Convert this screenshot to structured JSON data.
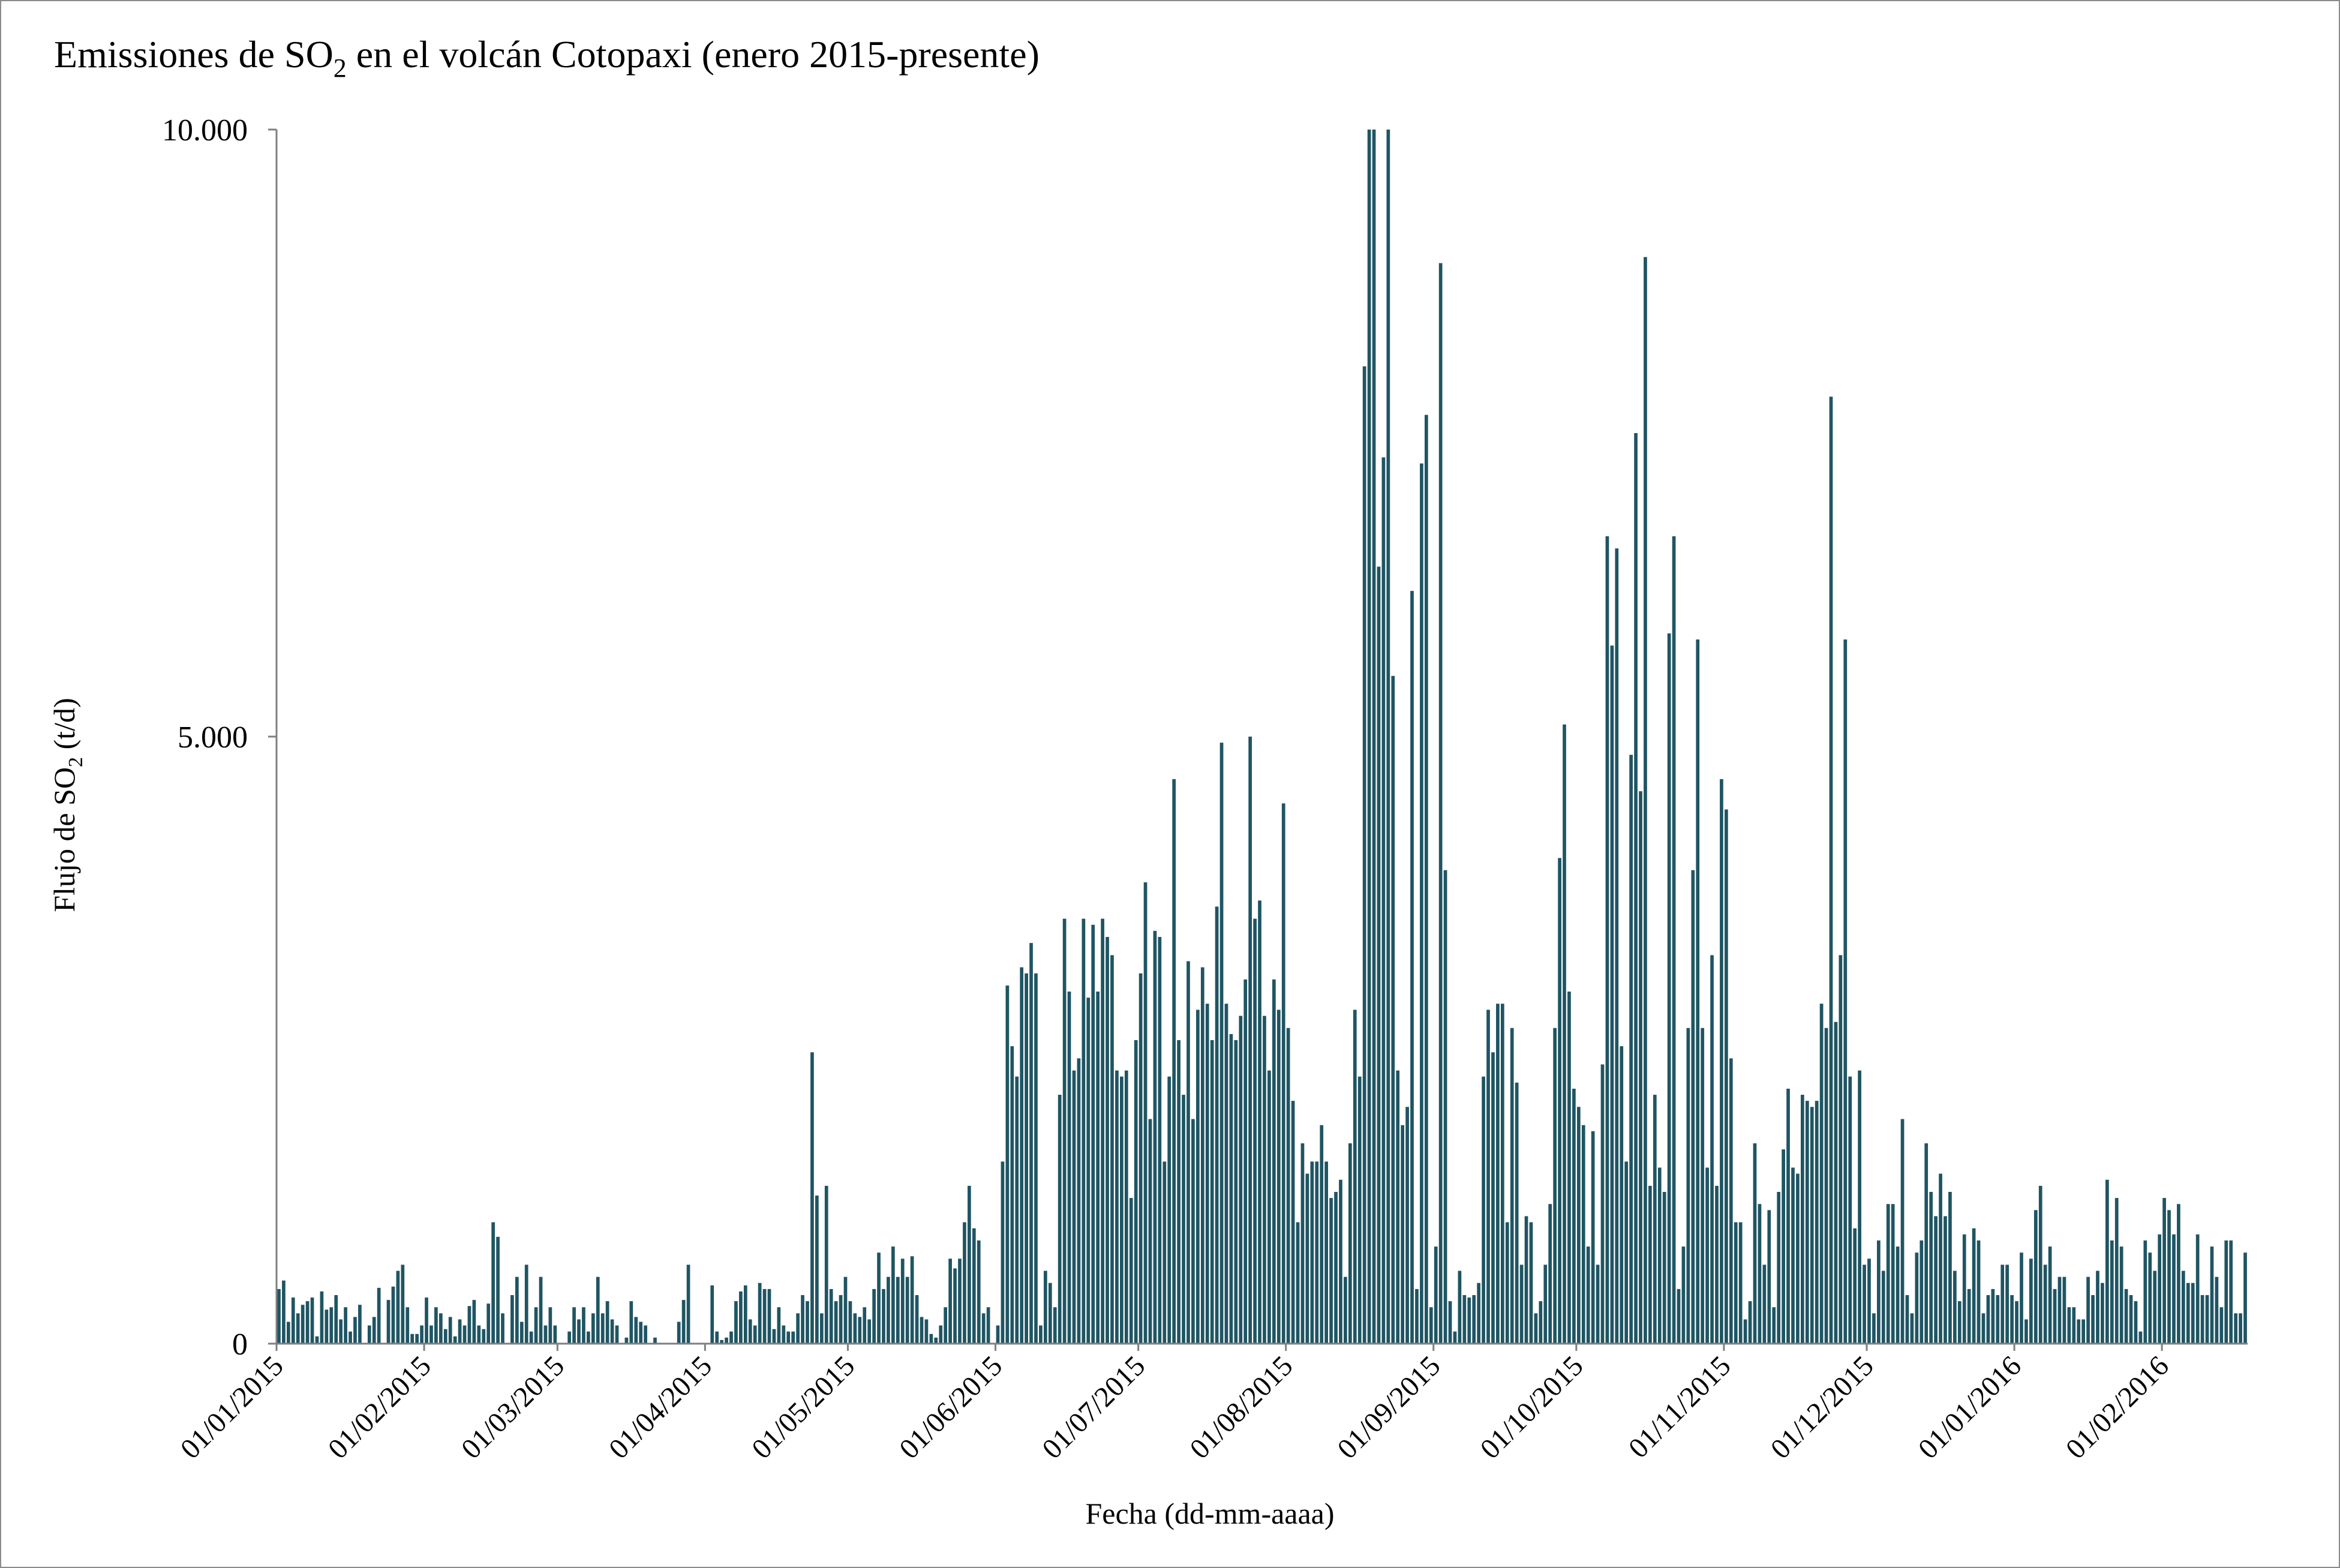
{
  "chart_data": {
    "type": "bar",
    "title": "Emissiones de SO",
    "title_sub": "2",
    "title_rest": " en el volcán Cotopaxi (enero 2015-presente)",
    "ylabel": "Flujo de SO",
    "ylabel_sub": "2",
    "ylabel_rest": " (t/d)",
    "xlabel": "Fecha (dd-mm-aaaa)",
    "ylim": [
      0,
      10000
    ],
    "y_ticks": [
      {
        "value": 0,
        "label": "0"
      },
      {
        "value": 5000,
        "label": "5.000"
      },
      {
        "value": 10000,
        "label": "10.000"
      }
    ],
    "x_ticks": [
      "01/01/2015",
      "01/02/2015",
      "01/03/2015",
      "01/04/2015",
      "01/05/2015",
      "01/06/2015",
      "01/07/2015",
      "01/08/2015",
      "01/09/2015",
      "01/10/2015",
      "01/11/2015",
      "01/12/2015",
      "01/01/2016",
      "01/02/2016"
    ],
    "x_start": "01/01/2015",
    "x_end": "20/02/2016",
    "grid": false,
    "legend": "none",
    "bar_color": "#1f5563",
    "daily_values": [
      450,
      520,
      180,
      380,
      250,
      320,
      350,
      380,
      60,
      430,
      280,
      300,
      400,
      200,
      300,
      100,
      220,
      320,
      0,
      150,
      220,
      460,
      0,
      360,
      470,
      600,
      650,
      300,
      80,
      80,
      150,
      380,
      150,
      300,
      250,
      120,
      220,
      60,
      200,
      150,
      310,
      360,
      150,
      120,
      330,
      1000,
      880,
      250,
      0,
      400,
      550,
      180,
      650,
      100,
      300,
      550,
      150,
      300,
      150,
      0,
      0,
      100,
      300,
      200,
      300,
      100,
      250,
      550,
      250,
      350,
      200,
      150,
      0,
      50,
      350,
      220,
      180,
      150,
      0,
      50,
      0,
      0,
      0,
      0,
      180,
      360,
      650,
      0,
      0,
      0,
      0,
      480,
      100,
      30,
      50,
      100,
      350,
      430,
      480,
      200,
      150,
      500,
      450,
      450,
      120,
      300,
      150,
      100,
      100,
      250,
      400,
      350,
      2400,
      1220,
      250,
      1300,
      450,
      350,
      400,
      550,
      350,
      250,
      220,
      300,
      200,
      450,
      750,
      450,
      550,
      800,
      550,
      700,
      550,
      720,
      400,
      220,
      200,
      80,
      50,
      150,
      300,
      700,
      620,
      700,
      1000,
      1300,
      950,
      850,
      250,
      300,
      0,
      150,
      1500,
      2950,
      2450,
      2200,
      3100,
      3050,
      3300,
      3050,
      150,
      600,
      500,
      300,
      2050,
      3500,
      2900,
      2250,
      2350,
      3500,
      2850,
      3450,
      2900,
      3500,
      3350,
      3200,
      2250,
      2200,
      2250,
      1200,
      2500,
      3050,
      3800,
      1850,
      3400,
      3350,
      1500,
      2200,
      4650,
      2500,
      2050,
      3150,
      1850,
      2750,
      3100,
      2800,
      2500,
      3600,
      4950,
      2800,
      2550,
      2500,
      2700,
      3000,
      5000,
      3500,
      3650,
      2700,
      2250,
      3000,
      2750,
      4450,
      2600,
      2000,
      1000,
      1650,
      1400,
      1500,
      1500,
      1800,
      1500,
      1200,
      1250,
      1350,
      550,
      1650,
      2750,
      2200,
      8050,
      10000,
      10000,
      6400,
      7300,
      10000,
      5500,
      2250,
      1800,
      1950,
      6200,
      450,
      7250,
      7650,
      300,
      800,
      8900,
      3900,
      350,
      100,
      600,
      400,
      380,
      400,
      500,
      2200,
      2750,
      2400,
      2800,
      2800,
      1000,
      2600,
      2150,
      650,
      1050,
      1000,
      250,
      350,
      650,
      1150,
      2600,
      4000,
      5100,
      2900,
      2100,
      1950,
      1800,
      800,
      1750,
      650,
      2300,
      6650,
      5750,
      6550,
      2450,
      1500,
      4850,
      7500,
      4550,
      8950,
      1300,
      2050,
      1450,
      1250,
      5850,
      6650,
      450,
      800,
      2600,
      3900,
      5800,
      2600,
      1450,
      3200,
      1300,
      4650,
      4400,
      2350,
      1000,
      1000,
      200,
      350,
      1650,
      1150,
      650,
      1100,
      300,
      1250,
      1600,
      2100,
      1450,
      1400,
      2050,
      2000,
      1950,
      2000,
      2800,
      2600,
      7800,
      2650,
      3200,
      5800,
      2200,
      950,
      2250,
      650,
      700,
      250,
      850,
      600,
      1150,
      1150,
      800,
      1850,
      400,
      250,
      750,
      850,
      1650,
      1250,
      1050,
      1400,
      1050,
      1250,
      600,
      350,
      900,
      450,
      950,
      850,
      250,
      400,
      450,
      400,
      650,
      650,
      400,
      350,
      750,
      200,
      700,
      1100,
      1300,
      650,
      800,
      450,
      550,
      550,
      300,
      300,
      200,
      200,
      550,
      400,
      600,
      500,
      1350,
      850,
      1200,
      800,
      450,
      400,
      350,
      100,
      850,
      750,
      600,
      900,
      1200,
      1100,
      900,
      1150,
      600,
      500,
      500,
      900,
      400,
      400,
      800,
      550,
      300,
      850,
      850,
      250,
      250,
      750
    ]
  }
}
